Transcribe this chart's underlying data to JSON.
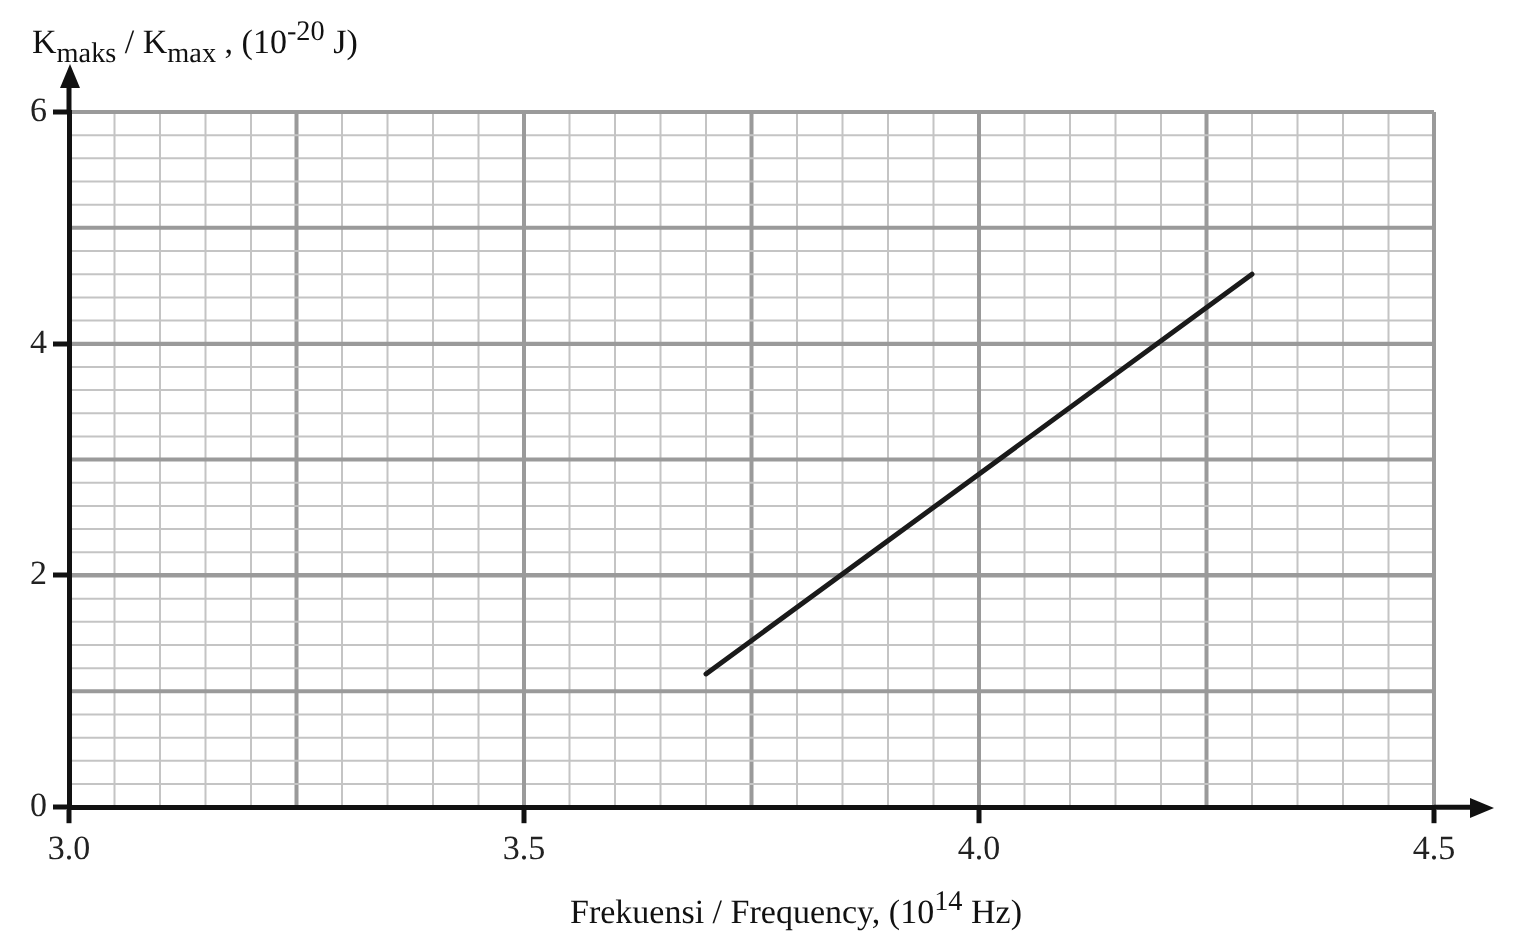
{
  "chart_data": {
    "type": "line",
    "xlabel": "Frekuensi / Frequency, (10$^{14}$ Hz)",
    "ylabel": "K$_{maks}$ / K$_{max}$ , (10$^{-20}$ J)",
    "series": [
      {
        "color": "#1a1a1a",
        "x": [
          3.7,
          4.3
        ],
        "values": [
          1.15,
          4.6
        ]
      }
    ],
    "xlim": [
      3.0,
      4.5
    ],
    "xticks": [
      {
        "value": 3.0,
        "label": "3.0"
      },
      {
        "value": 3.5,
        "label": "3.5"
      },
      {
        "value": 4.0,
        "label": "4.0"
      },
      {
        "value": 4.5,
        "label": "4.5"
      }
    ],
    "ylim": [
      0,
      6
    ],
    "yticks": [
      0,
      2,
      4,
      6
    ],
    "grid": true,
    "legend": false,
    "marker": "none",
    "line_style": "solid"
  }
}
